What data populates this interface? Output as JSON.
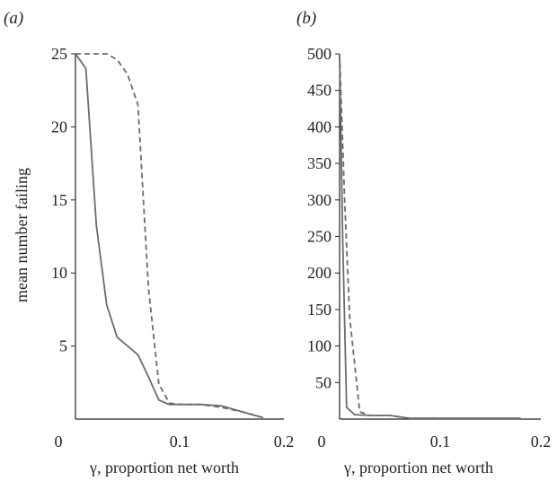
{
  "chart_data": [
    {
      "type": "line",
      "panel_label": "(a)",
      "xlabel": "γ, proportion net worth",
      "ylabel": "mean number failing",
      "xlim": [
        0,
        0.2
      ],
      "ylim": [
        0,
        25
      ],
      "x_origin_label": "0",
      "xticks": [
        "0.1",
        "0.2"
      ],
      "yticks": [
        "5",
        "10",
        "15",
        "20",
        "25"
      ],
      "grid": false,
      "series": [
        {
          "style": "solid",
          "color": "#6b6b6b",
          "points": [
            [
              0.0,
              25
            ],
            [
              0.01,
              24
            ],
            [
              0.02,
              13.3
            ],
            [
              0.03,
              7.8
            ],
            [
              0.04,
              5.6
            ],
            [
              0.05,
              5.0
            ],
            [
              0.06,
              4.4
            ],
            [
              0.07,
              2.9
            ],
            [
              0.08,
              1.3
            ],
            [
              0.09,
              1.0
            ],
            [
              0.1,
              1.0
            ],
            [
              0.12,
              1.0
            ],
            [
              0.14,
              0.9
            ],
            [
              0.16,
              0.5
            ],
            [
              0.18,
              0.1
            ]
          ]
        },
        {
          "style": "dashed",
          "color": "#6b6b6b",
          "points": [
            [
              0.0,
              25
            ],
            [
              0.02,
              25
            ],
            [
              0.03,
              25
            ],
            [
              0.04,
              24.6
            ],
            [
              0.05,
              23.6
            ],
            [
              0.06,
              21.5
            ],
            [
              0.07,
              9.0
            ],
            [
              0.08,
              2.4
            ],
            [
              0.09,
              1.1
            ],
            [
              0.1,
              1.0
            ],
            [
              0.12,
              1.0
            ],
            [
              0.14,
              0.8
            ],
            [
              0.16,
              0.5
            ],
            [
              0.18,
              0.1
            ]
          ]
        }
      ]
    },
    {
      "type": "line",
      "panel_label": "(b)",
      "xlabel": "γ, proportion net worth",
      "ylabel": "",
      "xlim": [
        0,
        0.2
      ],
      "ylim": [
        0,
        500
      ],
      "x_origin_label": "0",
      "xticks": [
        "0.1",
        "0.2"
      ],
      "yticks": [
        "50",
        "100",
        "150",
        "200",
        "250",
        "300",
        "350",
        "400",
        "450",
        "500"
      ],
      "grid": false,
      "series": [
        {
          "style": "solid",
          "color": "#6b6b6b",
          "points": [
            [
              0.0,
              500
            ],
            [
              0.003,
              250
            ],
            [
              0.007,
              16
            ],
            [
              0.015,
              6
            ],
            [
              0.03,
              5
            ],
            [
              0.05,
              5
            ],
            [
              0.06,
              3
            ],
            [
              0.07,
              1
            ],
            [
              0.1,
              1
            ],
            [
              0.14,
              1
            ],
            [
              0.18,
              1
            ]
          ]
        },
        {
          "style": "dashed",
          "color": "#6b6b6b",
          "points": [
            [
              0.0,
              500
            ],
            [
              0.005,
              300
            ],
            [
              0.01,
              140
            ],
            [
              0.02,
              10
            ],
            [
              0.03,
              5
            ],
            [
              0.05,
              5
            ],
            [
              0.06,
              3
            ],
            [
              0.07,
              1
            ],
            [
              0.1,
              1
            ],
            [
              0.14,
              1
            ],
            [
              0.18,
              1
            ]
          ]
        }
      ]
    }
  ]
}
